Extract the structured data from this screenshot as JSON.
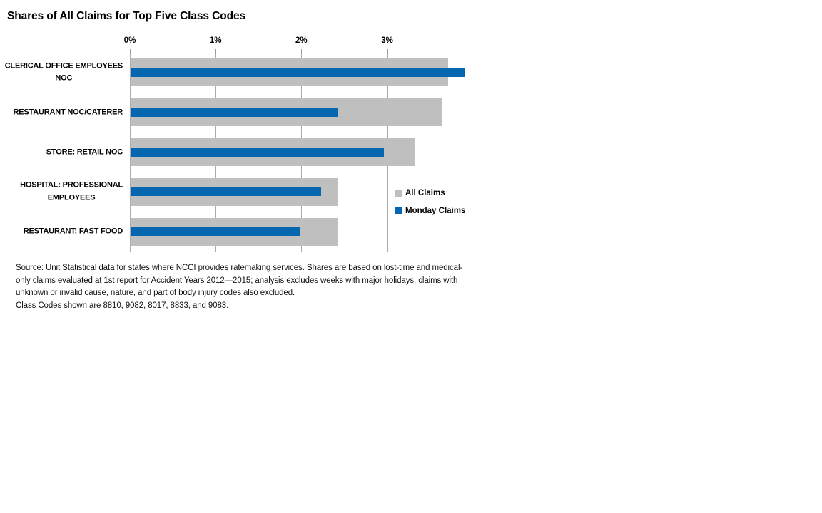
{
  "title": "Shares of All Claims for Top Five Class Codes",
  "legend": {
    "items": [
      {
        "label": "All Claims",
        "color": "#BFBFBF"
      },
      {
        "label": "Monday Claims",
        "color": "#0667B1"
      }
    ]
  },
  "footnote": {
    "lines": [
      "Source: Unit Statistical data for states where NCCI provides ratemaking services. Shares are based on lost-time and medical-",
      "only claims evaluated at 1st report for Accident Years 2012—2015; analysis excludes weeks with major holidays, claims with",
      "unknown or invalid cause, nature, and part of body injury codes also excluded.",
      "Class Codes shown are 8810, 9082, 8017, 8833, and 9083."
    ]
  },
  "chart_data": {
    "type": "bar",
    "orientation": "horizontal",
    "title": "Shares of All Claims for Top Five Class Codes",
    "categories": [
      "CLERICAL OFFICE EMPLOYEES NOC",
      "RESTAURANT NOC/CATERER",
      "STORE: RETAIL NOC",
      "HOSPITAL: PROFESSIONAL EMPLOYEES",
      "RESTAURANT: FAST FOOD"
    ],
    "category_label_lines": [
      [
        "CLERICAL OFFICE EMPLOYEES",
        "NOC"
      ],
      [
        "RESTAURANT NOC/CATERER"
      ],
      [
        "STORE: RETAIL NOC"
      ],
      [
        "HOSPITAL: PROFESSIONAL",
        "EMPLOYEES"
      ],
      [
        "RESTAURANT: FAST FOOD"
      ]
    ],
    "series": [
      {
        "name": "All Claims",
        "color": "#BFBFBF",
        "values": [
          3.7,
          3.63,
          3.31,
          2.41,
          2.41
        ]
      },
      {
        "name": "Monday Claims",
        "color": "#0667B1",
        "values": [
          3.9,
          2.41,
          2.95,
          2.22,
          1.97
        ]
      }
    ],
    "x_axis": {
      "tick_labels": [
        "0%",
        "1%",
        "2%",
        "3%"
      ],
      "tick_values": [
        0,
        1,
        2,
        3
      ],
      "unit": "percent of all claims"
    },
    "xlim": [
      0,
      4
    ],
    "grid": true,
    "legend_position": "middle-right",
    "colors": {
      "gridline": "#ABABAB",
      "text": "#000000",
      "background": "#FFFFFF"
    }
  }
}
